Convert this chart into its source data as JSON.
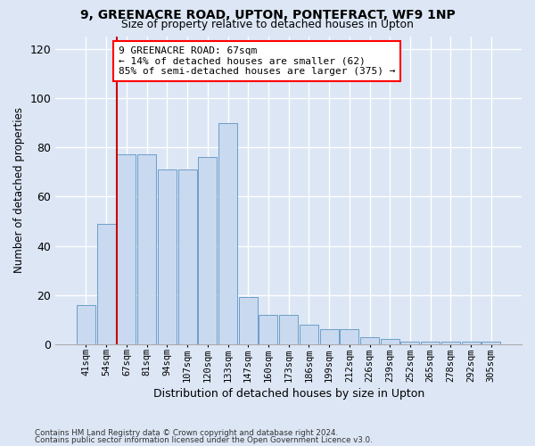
{
  "title_line1": "9, GREENACRE ROAD, UPTON, PONTEFRACT, WF9 1NP",
  "title_line2": "Size of property relative to detached houses in Upton",
  "xlabel": "Distribution of detached houses by size in Upton",
  "ylabel": "Number of detached properties",
  "categories": [
    "41sqm",
    "54sqm",
    "67sqm",
    "81sqm",
    "94sqm",
    "107sqm",
    "120sqm",
    "133sqm",
    "147sqm",
    "160sqm",
    "173sqm",
    "186sqm",
    "199sqm",
    "212sqm",
    "226sqm",
    "239sqm",
    "252sqm",
    "265sqm",
    "278sqm",
    "292sqm",
    "305sqm"
  ],
  "values": [
    16,
    49,
    77,
    77,
    71,
    71,
    76,
    90,
    19,
    12,
    12,
    8,
    6,
    6,
    3,
    2,
    1,
    1,
    1,
    1,
    1
  ],
  "bar_color": "#c9d9ef",
  "bar_edge_color": "#6b9ec8",
  "vline_pos": 1.5,
  "vline_color": "#cc0000",
  "annotation_line1": "9 GREENACRE ROAD: 67sqm",
  "annotation_line2": "← 14% of detached houses are smaller (62)",
  "annotation_line3": "85% of semi-detached houses are larger (375) →",
  "annotation_box_facecolor": "white",
  "annotation_box_edgecolor": "red",
  "ylim": [
    0,
    125
  ],
  "yticks": [
    0,
    20,
    40,
    60,
    80,
    100,
    120
  ],
  "footer_line1": "Contains HM Land Registry data © Crown copyright and database right 2024.",
  "footer_line2": "Contains public sector information licensed under the Open Government Licence v3.0.",
  "bg_color": "#dce6f5",
  "grid_color": "#ffffff"
}
